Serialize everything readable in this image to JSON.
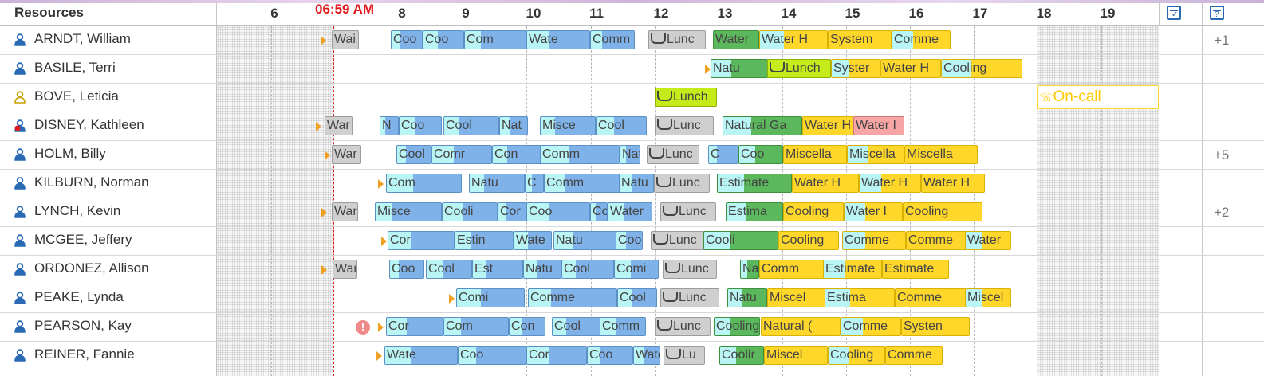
{
  "header": {
    "resources_label": "Resources",
    "now_label": "06:59 AM",
    "hours": [
      "6",
      "8",
      "9",
      "10",
      "11",
      "12",
      "13",
      "14",
      "15",
      "16",
      "17",
      "18",
      "19"
    ],
    "calendar_icon": "calendar-check-icon",
    "calendar_help_icon": "calendar-question-icon"
  },
  "colors": {
    "travel": "#b9f5f5",
    "work": "#7eb2e8",
    "estimate": "#ffd72a",
    "done": "#5cb85c",
    "now": "#e0191c"
  },
  "resources": [
    {
      "name": "ARNDT, William",
      "more": "+1",
      "tasks": [
        {
          "label": "Wai",
          "color": "gray"
        },
        {
          "label": "Coo",
          "color": "blue"
        },
        {
          "label": "Coo",
          "color": "blue"
        },
        {
          "label": "Com",
          "color": "blue"
        },
        {
          "label": "Wate",
          "color": "blue"
        },
        {
          "label": "Comm",
          "color": "blue"
        },
        {
          "label": "Lunc",
          "color": "gray",
          "cup": true
        },
        {
          "label": "Water",
          "color": "green"
        },
        {
          "label": "Water H",
          "color": "yellow"
        },
        {
          "label": "System",
          "color": "yellow"
        },
        {
          "label": "Comme",
          "color": "yellow"
        }
      ]
    },
    {
      "name": "BASILE, Terri",
      "more": "",
      "tasks": [
        {
          "label": "Natu",
          "color": "green"
        },
        {
          "label": "Lunch",
          "color": "lgreen",
          "cup": true
        },
        {
          "label": "Syster",
          "color": "yellow"
        },
        {
          "label": "Water H",
          "color": "yellow"
        },
        {
          "label": "Cooling",
          "color": "yellow"
        }
      ]
    },
    {
      "name": "BOVE, Leticia",
      "more": "",
      "tasks": [
        {
          "label": "Lunch",
          "color": "lgreen",
          "cup": true
        },
        {
          "label": "On-call",
          "color": "oncall"
        }
      ]
    },
    {
      "name": "DISNEY, Kathleen",
      "more": "",
      "tasks": [
        {
          "label": "War",
          "color": "gray"
        },
        {
          "label": "N",
          "color": "blue"
        },
        {
          "label": "Coo",
          "color": "blue"
        },
        {
          "label": "Cool",
          "color": "blue"
        },
        {
          "label": "Nat",
          "color": "blue"
        },
        {
          "label": "Misce",
          "color": "blue"
        },
        {
          "label": "Cool",
          "color": "blue"
        },
        {
          "label": "Lunc",
          "color": "gray",
          "cup": true
        },
        {
          "label": "Natural Ga",
          "color": "green"
        },
        {
          "label": "Water H",
          "color": "yellow"
        },
        {
          "label": "Water I",
          "color": "pink"
        }
      ]
    },
    {
      "name": "HOLM, Billy",
      "more": "+5",
      "tasks": [
        {
          "label": "War",
          "color": "gray"
        },
        {
          "label": "Cool",
          "color": "blue"
        },
        {
          "label": "Comr",
          "color": "blue"
        },
        {
          "label": "Con",
          "color": "blue"
        },
        {
          "label": "Comm",
          "color": "blue"
        },
        {
          "label": "Natu",
          "color": "blue"
        },
        {
          "label": "Lunc",
          "color": "gray",
          "cup": true
        },
        {
          "label": "C",
          "color": "blue"
        },
        {
          "label": "Coo",
          "color": "green"
        },
        {
          "label": "Miscella",
          "color": "yellow"
        },
        {
          "label": "Miscella",
          "color": "yellow"
        },
        {
          "label": "Miscella",
          "color": "yellow"
        }
      ]
    },
    {
      "name": "KILBURN, Norman",
      "more": "",
      "tasks": [
        {
          "label": "Com",
          "color": "blue"
        },
        {
          "label": "Natu",
          "color": "blue"
        },
        {
          "label": "C",
          "color": "blue"
        },
        {
          "label": "Comm",
          "color": "blue"
        },
        {
          "label": "Natu",
          "color": "blue"
        },
        {
          "label": "Lunc",
          "color": "gray",
          "cup": true
        },
        {
          "label": "Estimate",
          "color": "green"
        },
        {
          "label": "Water H",
          "color": "yellow"
        },
        {
          "label": "Water H",
          "color": "yellow"
        },
        {
          "label": "Water H",
          "color": "yellow"
        }
      ]
    },
    {
      "name": "LYNCH, Kevin",
      "more": "+2",
      "tasks": [
        {
          "label": "War",
          "color": "gray"
        },
        {
          "label": "Misce",
          "color": "blue"
        },
        {
          "label": "Cooli",
          "color": "blue"
        },
        {
          "label": "Cor",
          "color": "blue"
        },
        {
          "label": "Coo",
          "color": "blue"
        },
        {
          "label": "Coo",
          "color": "blue"
        },
        {
          "label": "Water",
          "color": "blue"
        },
        {
          "label": "Lunc",
          "color": "gray",
          "cup": true
        },
        {
          "label": "Estima",
          "color": "green"
        },
        {
          "label": "Cooling",
          "color": "yellow"
        },
        {
          "label": "Water I",
          "color": "yellow"
        },
        {
          "label": "Cooling",
          "color": "yellow"
        }
      ]
    },
    {
      "name": "MCGEE, Jeffery",
      "more": "",
      "tasks": [
        {
          "label": "Cor",
          "color": "blue"
        },
        {
          "label": "Estin",
          "color": "blue"
        },
        {
          "label": "Wate",
          "color": "blue"
        },
        {
          "label": "Natu",
          "color": "blue"
        },
        {
          "label": "Coo",
          "color": "blue"
        },
        {
          "label": "Lunc",
          "color": "gray",
          "cup": true
        },
        {
          "label": "Cooli",
          "color": "green"
        },
        {
          "label": "Cooling",
          "color": "yellow"
        },
        {
          "label": "Comme",
          "color": "yellow"
        },
        {
          "label": "Comme",
          "color": "yellow"
        },
        {
          "label": "Water",
          "color": "yellow"
        }
      ]
    },
    {
      "name": "ORDONEZ, Allison",
      "more": "",
      "tasks": [
        {
          "label": "War",
          "color": "gray"
        },
        {
          "label": "Coo",
          "color": "blue"
        },
        {
          "label": "Cool",
          "color": "blue"
        },
        {
          "label": "Est",
          "color": "blue"
        },
        {
          "label": "Natu",
          "color": "blue"
        },
        {
          "label": "Cool",
          "color": "blue"
        },
        {
          "label": "Comi",
          "color": "blue"
        },
        {
          "label": "Lunc",
          "color": "gray",
          "cup": true
        },
        {
          "label": "Na",
          "color": "green"
        },
        {
          "label": "Comm",
          "color": "yellow"
        },
        {
          "label": "Estimate",
          "color": "yellow"
        },
        {
          "label": "Estimate",
          "color": "yellow"
        }
      ]
    },
    {
      "name": "PEAKE, Lynda",
      "more": "",
      "tasks": [
        {
          "label": "Comi",
          "color": "blue"
        },
        {
          "label": "Comme",
          "color": "blue"
        },
        {
          "label": "Cool",
          "color": "blue"
        },
        {
          "label": "Lunc",
          "color": "gray",
          "cup": true
        },
        {
          "label": "Natu",
          "color": "green"
        },
        {
          "label": "Miscel",
          "color": "yellow"
        },
        {
          "label": "Estima",
          "color": "yellow"
        },
        {
          "label": "Comme",
          "color": "yellow"
        },
        {
          "label": "Miscel",
          "color": "yellow"
        }
      ]
    },
    {
      "name": "PEARSON, Kay",
      "more": "",
      "tasks": [
        {
          "label": "Cor",
          "color": "blue"
        },
        {
          "label": "Com",
          "color": "blue"
        },
        {
          "label": "Con",
          "color": "blue"
        },
        {
          "label": "Cool",
          "color": "blue"
        },
        {
          "label": "Comm",
          "color": "blue"
        },
        {
          "label": "Lunc",
          "color": "gray",
          "cup": true
        },
        {
          "label": "Cooling",
          "color": "green"
        },
        {
          "label": "Natural (",
          "color": "yellow"
        },
        {
          "label": "Comme",
          "color": "yellow"
        },
        {
          "label": "Systen",
          "color": "yellow"
        }
      ]
    },
    {
      "name": "REINER, Fannie",
      "more": "",
      "tasks": [
        {
          "label": "Wate",
          "color": "blue"
        },
        {
          "label": "Coo",
          "color": "blue"
        },
        {
          "label": "Cor",
          "color": "blue"
        },
        {
          "label": "Coo",
          "color": "blue"
        },
        {
          "label": "Wate",
          "color": "blue"
        },
        {
          "label": "Lu",
          "color": "gray",
          "cup": true
        },
        {
          "label": "Coolir",
          "color": "green"
        },
        {
          "label": "Miscel",
          "color": "yellow"
        },
        {
          "label": "Cooling",
          "color": "yellow"
        },
        {
          "label": "Comme",
          "color": "yellow"
        }
      ]
    }
  ]
}
